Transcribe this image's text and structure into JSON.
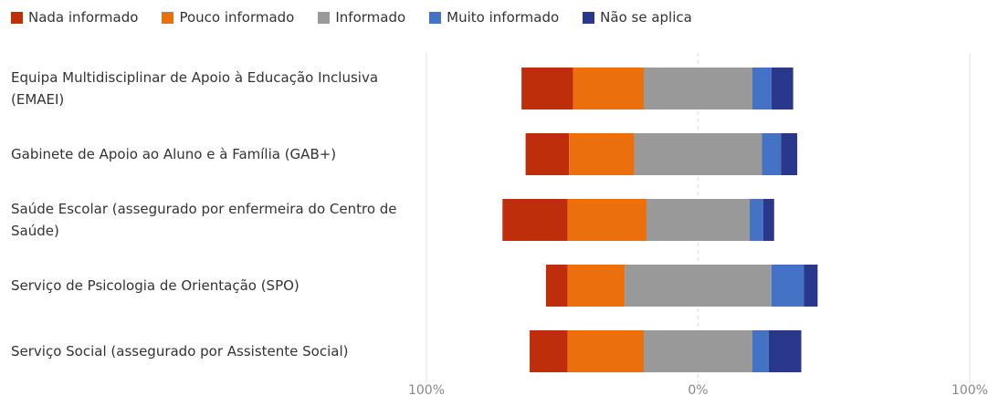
{
  "chart_data": {
    "type": "diverging-bar",
    "categories": [
      "Equipa Multidisciplinar de Apoio à Educação Inclusiva (EMAEI)",
      "Gabinete de Apoio ao Aluno e à Família (GAB+)",
      "Saúde Escolar (assegurado por enfermeira do Centro de Saúde)",
      "Serviço de Psicologia de Orientação (SPO)",
      "Serviço Social (assegurado por Assistente Social)"
    ],
    "series": [
      {
        "name": "Nada informado",
        "color": "#bf2e0a",
        "values": [
          19,
          16,
          24,
          8,
          14
        ]
      },
      {
        "name": "Pouco informado",
        "color": "#eb6f0c",
        "values": [
          26,
          24,
          29,
          21,
          28
        ]
      },
      {
        "name": "Informado",
        "color": "#999999",
        "values": [
          40,
          47,
          38,
          54,
          40
        ]
      },
      {
        "name": "Muito informado",
        "color": "#4472c4",
        "values": [
          7,
          7,
          5,
          12,
          6
        ]
      },
      {
        "name": "Não se aplica",
        "color": "#29388c",
        "values": [
          8,
          6,
          4,
          5,
          12
        ]
      }
    ],
    "xlim": [
      -100,
      100
    ],
    "xticks": [
      {
        "value": -100,
        "label": "100%"
      },
      {
        "value": 0,
        "label": "0%"
      },
      {
        "value": 100,
        "label": "100%"
      }
    ],
    "grid": true
  }
}
